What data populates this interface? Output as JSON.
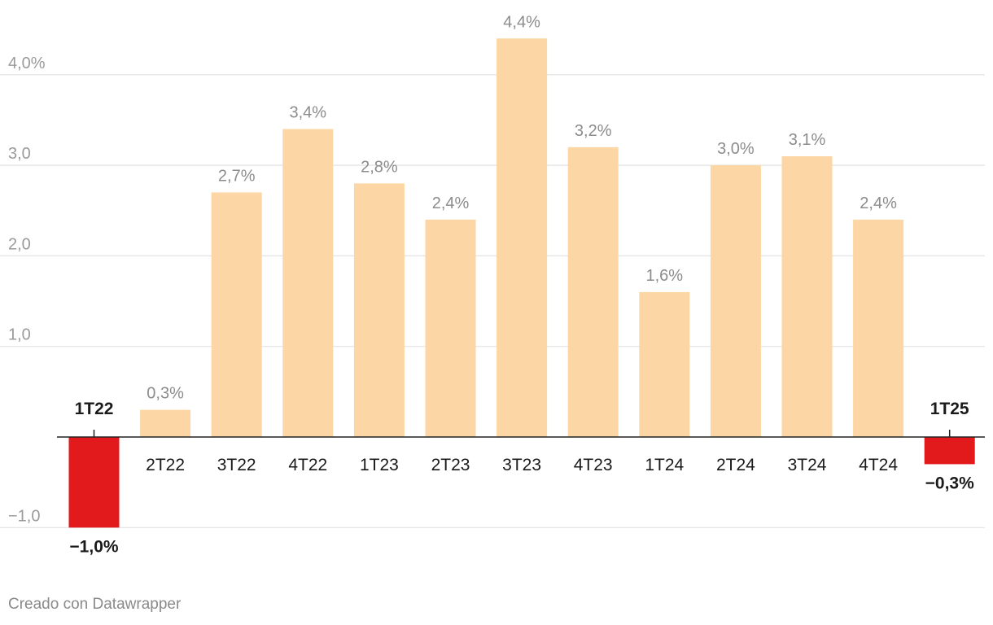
{
  "chart_data": {
    "type": "bar",
    "categories": [
      "1T22",
      "2T22",
      "3T22",
      "4T22",
      "1T23",
      "2T23",
      "3T23",
      "4T23",
      "1T24",
      "2T24",
      "3T24",
      "4T24",
      "1T25"
    ],
    "values": [
      -1.0,
      0.3,
      2.7,
      3.4,
      2.8,
      2.4,
      4.4,
      3.2,
      1.6,
      3.0,
      3.1,
      2.4,
      -0.3
    ],
    "value_labels": [
      "−1,0%",
      "0,3%",
      "2,7%",
      "3,4%",
      "2,8%",
      "2,4%",
      "4,4%",
      "3,2%",
      "1,6%",
      "3,0%",
      "3,1%",
      "2,4%",
      "−0,3%"
    ],
    "y_ticks": [
      {
        "value": -1.0,
        "label": "−1,0"
      },
      {
        "value": 1.0,
        "label": "1,0"
      },
      {
        "value": 2.0,
        "label": "2,0"
      },
      {
        "value": 3.0,
        "label": "3,0"
      },
      {
        "value": 4.0,
        "label": "4,0%"
      }
    ],
    "ylim": [
      -1.0,
      4.4
    ],
    "grid": true,
    "colors": {
      "positive": "#fcd6a4",
      "negative": "#e31a1c",
      "grid": "#e2e2e2",
      "axis": "#222222",
      "tick_text": "#9a9a9a",
      "label_text": "#8c8c8c",
      "highlight_text": "#1a1a1a"
    },
    "title": "",
    "xlabel": "",
    "ylabel": ""
  },
  "credit": "Creado con Datawrapper"
}
